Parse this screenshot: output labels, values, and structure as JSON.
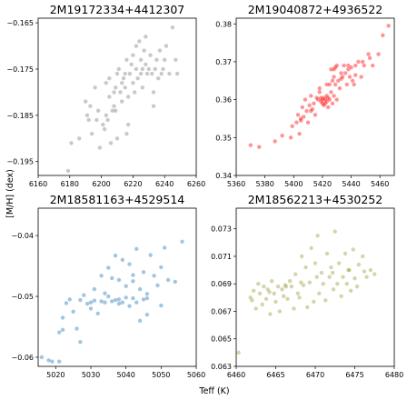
{
  "figure": {
    "xlabel": "Teff (K)",
    "ylabel": "[M/H] (dex)"
  },
  "chart_data": [
    {
      "type": "scatter",
      "title": "2M19172334+4412307",
      "color": "#7f7f7f",
      "xlim": [
        6160,
        6260
      ],
      "ylim": [
        -0.198,
        -0.164
      ],
      "xticks": [
        6160,
        6180,
        6200,
        6220,
        6240,
        6260
      ],
      "yticks": [
        -0.195,
        -0.185,
        -0.175,
        -0.165
      ],
      "yticklabels": [
        "−0.195",
        "−0.185",
        "−0.175",
        "−0.165"
      ],
      "x": [
        6179,
        6181,
        6186,
        6190,
        6191,
        6192,
        6193,
        6194,
        6196,
        6197,
        6198,
        6199,
        6201,
        6202,
        6203,
        6203,
        6204,
        6205,
        6205,
        6206,
        6207,
        6208,
        6208,
        6209,
        6210,
        6210,
        6211,
        6212,
        6213,
        6213,
        6214,
        6215,
        6215,
        6216,
        6217,
        6217,
        6218,
        6219,
        6220,
        6220,
        6221,
        6222,
        6222,
        6223,
        6224,
        6225,
        6225,
        6226,
        6227,
        6228,
        6228,
        6229,
        6230,
        6231,
        6232,
        6233,
        6234,
        6235,
        6236,
        6237,
        6238,
        6239,
        6240,
        6241,
        6243,
        6245,
        6247,
        6248,
        6209,
        6216,
        6226,
        6233
      ],
      "y": [
        -0.197,
        -0.191,
        -0.19,
        -0.182,
        -0.185,
        -0.186,
        -0.183,
        -0.189,
        -0.179,
        -0.186,
        -0.184,
        -0.192,
        -0.187,
        -0.188,
        -0.178,
        -0.185,
        -0.186,
        -0.177,
        -0.181,
        -0.191,
        -0.184,
        -0.18,
        -0.183,
        -0.179,
        -0.176,
        -0.19,
        -0.175,
        -0.18,
        -0.178,
        -0.182,
        -0.177,
        -0.176,
        -0.179,
        -0.173,
        -0.181,
        -0.187,
        -0.176,
        -0.174,
        -0.178,
        -0.172,
        -0.18,
        -0.175,
        -0.17,
        -0.177,
        -0.169,
        -0.176,
        -0.173,
        -0.175,
        -0.171,
        -0.168,
        -0.174,
        -0.176,
        -0.175,
        -0.172,
        -0.176,
        -0.18,
        -0.175,
        -0.173,
        -0.177,
        -0.171,
        -0.176,
        -0.175,
        -0.173,
        -0.17,
        -0.176,
        -0.166,
        -0.173,
        -0.176,
        -0.184,
        -0.189,
        -0.179,
        -0.183
      ]
    },
    {
      "type": "scatter",
      "title": "2M19040872+4936522",
      "color": "#ff0000",
      "xlim": [
        5360,
        5470
      ],
      "ylim": [
        0.34,
        0.3815
      ],
      "xticks": [
        5360,
        5380,
        5400,
        5420,
        5440,
        5460
      ],
      "yticks": [
        0.34,
        0.35,
        0.36,
        0.37,
        0.38
      ],
      "yticklabels": [
        "0.34",
        "0.35",
        "0.36",
        "0.37",
        "0.38"
      ],
      "x": [
        5370,
        5376,
        5387,
        5392,
        5398,
        5399,
        5402,
        5403,
        5404,
        5405,
        5406,
        5407,
        5408,
        5409,
        5410,
        5411,
        5412,
        5413,
        5414,
        5415,
        5416,
        5417,
        5418,
        5419,
        5419,
        5420,
        5420,
        5421,
        5421,
        5422,
        5422,
        5423,
        5423,
        5424,
        5424,
        5425,
        5425,
        5426,
        5426,
        5427,
        5427,
        5428,
        5428,
        5429,
        5429,
        5430,
        5430,
        5431,
        5432,
        5433,
        5434,
        5435,
        5436,
        5437,
        5438,
        5439,
        5440,
        5441,
        5442,
        5443,
        5445,
        5447,
        5449,
        5452,
        5455,
        5459,
        5462,
        5466,
        5405,
        5412,
        5418,
        5423,
        5428,
        5433,
        5438,
        5443,
        5448,
        5453
      ],
      "y": [
        0.348,
        0.3475,
        0.349,
        0.3505,
        0.35,
        0.353,
        0.354,
        0.356,
        0.351,
        0.3545,
        0.358,
        0.3555,
        0.36,
        0.357,
        0.354,
        0.3585,
        0.361,
        0.3575,
        0.359,
        0.356,
        0.3605,
        0.36,
        0.363,
        0.3595,
        0.3605,
        0.359,
        0.36,
        0.3585,
        0.3605,
        0.359,
        0.36,
        0.3595,
        0.361,
        0.358,
        0.3605,
        0.364,
        0.36,
        0.362,
        0.368,
        0.359,
        0.365,
        0.368,
        0.361,
        0.364,
        0.3685,
        0.36,
        0.369,
        0.365,
        0.363,
        0.3655,
        0.366,
        0.369,
        0.367,
        0.364,
        0.369,
        0.366,
        0.3685,
        0.365,
        0.364,
        0.3665,
        0.37,
        0.366,
        0.369,
        0.372,
        0.369,
        0.372,
        0.377,
        0.3795,
        0.355,
        0.357,
        0.362,
        0.364,
        0.366,
        0.367,
        0.368,
        0.369,
        0.37,
        0.371
      ]
    },
    {
      "type": "scatter",
      "title": "2M18581163+4529514",
      "color": "#1f77b4",
      "xlim": [
        5015,
        5060
      ],
      "ylim": [
        -0.0615,
        -0.0355
      ],
      "xticks": [
        5020,
        5030,
        5040,
        5050,
        5060
      ],
      "yticks": [
        -0.06,
        -0.05,
        -0.04
      ],
      "yticklabels": [
        "−0.06",
        "−0.05",
        "−0.04"
      ],
      "x": [
        5016,
        5018,
        5019,
        5021,
        5021,
        5022,
        5022,
        5023,
        5024,
        5025,
        5026,
        5027,
        5027,
        5028,
        5029,
        5030,
        5031,
        5031,
        5032,
        5033,
        5033,
        5034,
        5035,
        5035,
        5036,
        5036,
        5037,
        5037,
        5038,
        5038,
        5039,
        5039,
        5040,
        5040,
        5041,
        5041,
        5042,
        5042,
        5043,
        5043,
        5044,
        5044,
        5045,
        5045,
        5046,
        5046,
        5047,
        5048,
        5049,
        5050,
        5051,
        5052,
        5054,
        5056,
        5030,
        5034,
        5038,
        5042,
        5046,
        5050
      ],
      "y": [
        -0.06,
        -0.0605,
        -0.0607,
        -0.0607,
        -0.0559,
        -0.0535,
        -0.0555,
        -0.0511,
        -0.0505,
        -0.0525,
        -0.0553,
        -0.0506,
        -0.0575,
        -0.0498,
        -0.0512,
        -0.051,
        -0.0507,
        -0.0488,
        -0.0528,
        -0.0508,
        -0.0466,
        -0.051,
        -0.05,
        -0.0453,
        -0.0508,
        -0.047,
        -0.0506,
        -0.0433,
        -0.0505,
        -0.0473,
        -0.051,
        -0.044,
        -0.0502,
        -0.0483,
        -0.0516,
        -0.0447,
        -0.0503,
        -0.0465,
        -0.051,
        -0.0422,
        -0.0488,
        -0.054,
        -0.0505,
        -0.046,
        -0.0496,
        -0.0503,
        -0.0432,
        -0.0466,
        -0.0482,
        -0.0452,
        -0.042,
        -0.0473,
        -0.0476,
        -0.041,
        -0.052,
        -0.0495,
        -0.0512,
        -0.0475,
        -0.053,
        -0.0515
      ]
    },
    {
      "type": "scatter",
      "title": "2M18562213+4530252",
      "color": "#9a9a3a",
      "xlim": [
        6460,
        6480
      ],
      "ylim": [
        0.063,
        0.0745
      ],
      "xticks": [
        6460,
        6465,
        6470,
        6475,
        6480
      ],
      "yticks": [
        0.063,
        0.065,
        0.067,
        0.069,
        0.071,
        0.073
      ],
      "yticklabels": [
        "0.063",
        "0.065",
        "0.067",
        "0.069",
        "0.071",
        "0.073"
      ],
      "x": [
        6460.3,
        6461.8,
        6462.2,
        6462.5,
        6462.8,
        6463.0,
        6463.3,
        6463.5,
        6463.8,
        6464.0,
        6464.3,
        6464.5,
        6464.8,
        6465.0,
        6465.3,
        6465.5,
        6465.8,
        6466.0,
        6466.3,
        6466.5,
        6466.8,
        6467.0,
        6467.3,
        6467.5,
        6467.8,
        6468.0,
        6468.3,
        6468.5,
        6468.8,
        6469.0,
        6469.3,
        6469.5,
        6469.8,
        6470.0,
        6470.3,
        6470.5,
        6470.8,
        6471.0,
        6471.3,
        6471.5,
        6471.8,
        6472.0,
        6472.3,
        6472.5,
        6472.8,
        6473.0,
        6473.3,
        6473.5,
        6473.8,
        6474.0,
        6474.3,
        6474.5,
        6474.8,
        6475.0,
        6475.3,
        6475.5,
        6476.0,
        6476.5,
        6477.0,
        6477.5,
        6462.0,
        6464.2,
        6466.2,
        6468.2,
        6470.2,
        6472.2,
        6474.2,
        6476.2
      ],
      "y": [
        0.064,
        0.068,
        0.0685,
        0.0672,
        0.069,
        0.0683,
        0.0675,
        0.0688,
        0.0679,
        0.0686,
        0.0668,
        0.0692,
        0.0683,
        0.0677,
        0.0688,
        0.067,
        0.0686,
        0.0681,
        0.0688,
        0.0679,
        0.0692,
        0.0688,
        0.0672,
        0.0697,
        0.0683,
        0.068,
        0.071,
        0.0689,
        0.0702,
        0.0673,
        0.0691,
        0.0716,
        0.0677,
        0.0705,
        0.0725,
        0.0683,
        0.0698,
        0.069,
        0.0678,
        0.0712,
        0.0695,
        0.0702,
        0.0686,
        0.0728,
        0.069,
        0.0705,
        0.0681,
        0.0695,
        0.0712,
        0.069,
        0.07,
        0.0685,
        0.0715,
        0.0694,
        0.0688,
        0.0704,
        0.071,
        0.0695,
        0.07,
        0.0697,
        0.0678,
        0.0684,
        0.0689,
        0.0691,
        0.0695,
        0.0698,
        0.07,
        0.0699
      ]
    }
  ]
}
